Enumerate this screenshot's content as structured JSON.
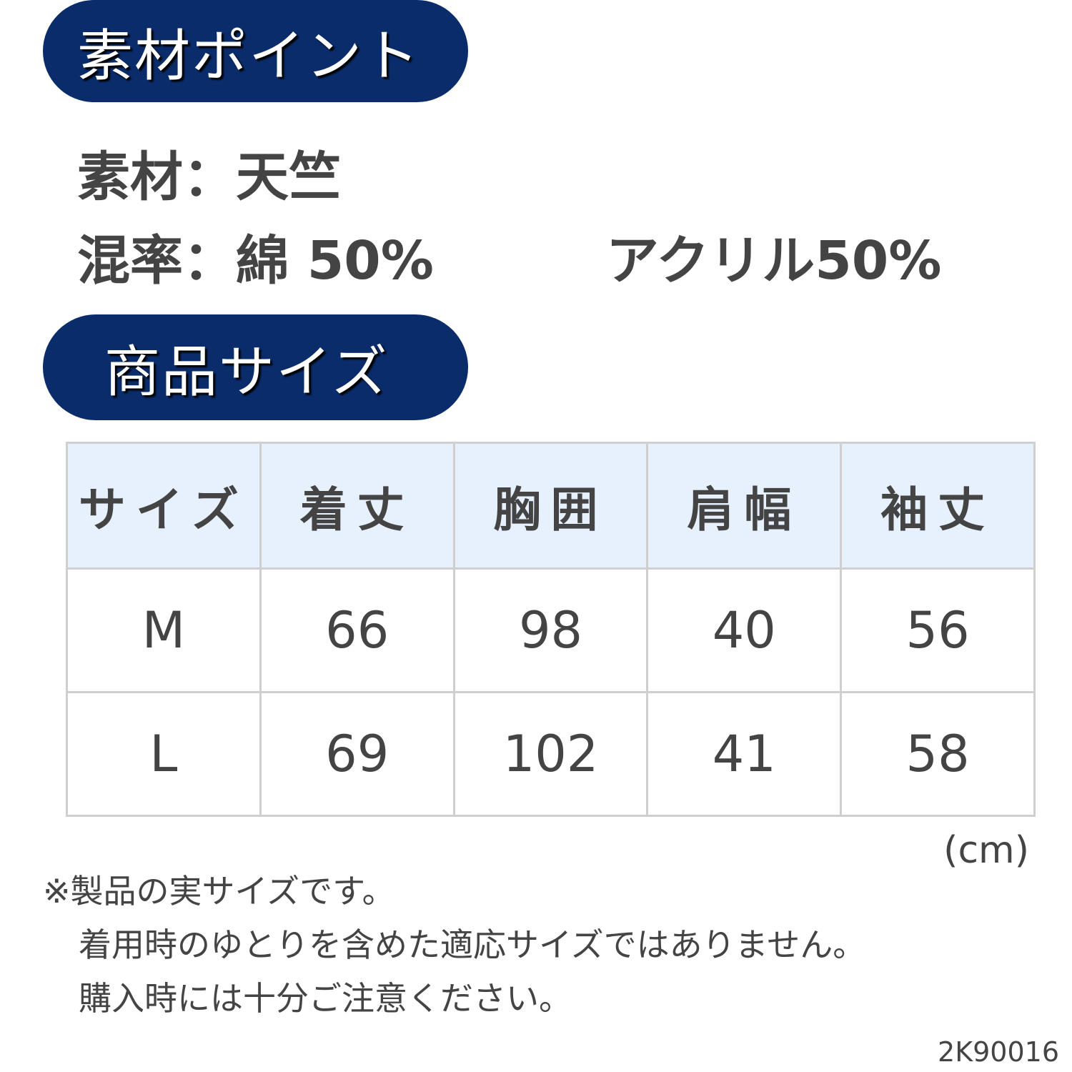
{
  "material_header": "素材ポイント",
  "material": {
    "line1": "素材：天竺",
    "line2_cotton": "混率：綿 50%",
    "line2_acrylic": "アクリル50%"
  },
  "size_header": "商品サイズ",
  "accent_color": "#0b2c6b",
  "table": {
    "headers": [
      "サイズ",
      "着丈",
      "胸囲",
      "肩幅",
      "袖丈"
    ],
    "rows": [
      [
        "M",
        "66",
        "98",
        "40",
        "56"
      ],
      [
        "L",
        "69",
        "102",
        "41",
        "58"
      ]
    ]
  },
  "unit": "(cm)",
  "notes": [
    "※製品の実サイズです。",
    "着用時のゆとりを含めた適応サイズではありません。",
    "購入時には十分ご注意ください。"
  ],
  "product_code": "2K90016"
}
